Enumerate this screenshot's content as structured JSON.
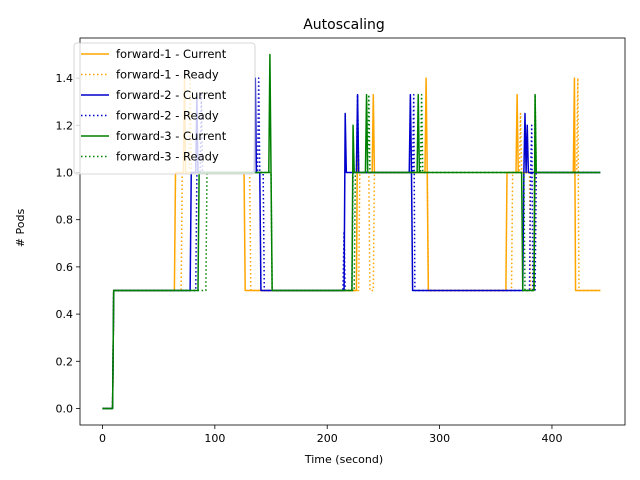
{
  "chart_data": {
    "type": "line",
    "title": "Autoscaling",
    "xlabel": "Time (second)",
    "ylabel": "# Pods",
    "xlim": [
      -20,
      465
    ],
    "ylim": [
      -0.07,
      1.57
    ],
    "xticks": [
      0,
      100,
      200,
      300,
      400
    ],
    "yticks": [
      0.0,
      0.2,
      0.4,
      0.6,
      0.8,
      1.0,
      1.2,
      1.4
    ],
    "ytick_labels": [
      "0.0",
      "0.2",
      "0.4",
      "0.6",
      "0.8",
      "1.0",
      "1.2",
      "1.4"
    ],
    "grid": false,
    "legend_position": "top-left",
    "series": [
      {
        "name": "forward-1 - Current",
        "color": "#ffa500",
        "dash": "solid",
        "points": [
          [
            0,
            0
          ],
          [
            9,
            0
          ],
          [
            10,
            0.5
          ],
          [
            64,
            0.5
          ],
          [
            65,
            1.0
          ],
          [
            72,
            1.0
          ],
          [
            73,
            1.4
          ],
          [
            74,
            1.0
          ],
          [
            126,
            1.0
          ],
          [
            127,
            0.5
          ],
          [
            215,
            0.5
          ],
          [
            216,
            0.5
          ],
          [
            226,
            0.5
          ],
          [
            227,
            1.25
          ],
          [
            228,
            1.0
          ],
          [
            240,
            1.0
          ],
          [
            241,
            1.33
          ],
          [
            242,
            1.0
          ],
          [
            287,
            1.0
          ],
          [
            288,
            1.4
          ],
          [
            289,
            1.0
          ],
          [
            290,
            0.5
          ],
          [
            359,
            0.5
          ],
          [
            360,
            1.0
          ],
          [
            368,
            1.0
          ],
          [
            369,
            1.33
          ],
          [
            370,
            1.0
          ],
          [
            419,
            1.0
          ],
          [
            420,
            1.4
          ],
          [
            421,
            0.5
          ],
          [
            443,
            0.5
          ]
        ]
      },
      {
        "name": "forward-1 - Ready",
        "color": "#ffa500",
        "dash": "dotted",
        "points": [
          [
            0,
            0
          ],
          [
            9,
            0
          ],
          [
            10,
            0.5
          ],
          [
            70,
            0.5
          ],
          [
            71,
            1.0
          ],
          [
            77,
            1.0
          ],
          [
            78,
            1.4
          ],
          [
            79,
            1.0
          ],
          [
            131,
            1.0
          ],
          [
            132,
            0.5
          ],
          [
            228,
            0.5
          ],
          [
            229,
            1.0
          ],
          [
            237,
            1.0
          ],
          [
            238,
            0.5
          ],
          [
            241,
            0.5
          ],
          [
            242,
            1.0
          ],
          [
            289,
            1.0
          ],
          [
            290,
            0.5
          ],
          [
            364,
            0.5
          ],
          [
            365,
            1.0
          ],
          [
            371,
            1.0
          ],
          [
            372,
            1.25
          ],
          [
            373,
            1.0
          ],
          [
            380,
            1.0
          ],
          [
            381,
            0.5
          ],
          [
            384,
            0.5
          ],
          [
            385,
            1.0
          ],
          [
            422,
            1.0
          ],
          [
            423,
            1.4
          ],
          [
            424,
            0.5
          ],
          [
            443,
            0.5
          ]
        ]
      },
      {
        "name": "forward-2 - Current",
        "color": "#0000cc",
        "dash": "solid",
        "points": [
          [
            0,
            0
          ],
          [
            9,
            0
          ],
          [
            10,
            0.5
          ],
          [
            78,
            0.5
          ],
          [
            79,
            1.0
          ],
          [
            83,
            1.0
          ],
          [
            84,
            1.33
          ],
          [
            85,
            1.0
          ],
          [
            135,
            1.0
          ],
          [
            136,
            1.4
          ],
          [
            137,
            1.0
          ],
          [
            140,
            1.0
          ],
          [
            141,
            0.5
          ],
          [
            215,
            0.5
          ],
          [
            216,
            1.25
          ],
          [
            217,
            1.0
          ],
          [
            226,
            1.0
          ],
          [
            227,
            1.33
          ],
          [
            228,
            1.0
          ],
          [
            273,
            1.0
          ],
          [
            274,
            1.33
          ],
          [
            275,
            1.0
          ],
          [
            276,
            0.5
          ],
          [
            374,
            0.5
          ],
          [
            375,
            1.0
          ],
          [
            376,
            1.25
          ],
          [
            377,
            1.0
          ],
          [
            378,
            1.2
          ],
          [
            379,
            1.0
          ],
          [
            443,
            1.0
          ]
        ]
      },
      {
        "name": "forward-2 - Ready",
        "color": "#0000cc",
        "dash": "dotted",
        "points": [
          [
            0,
            0
          ],
          [
            9,
            0
          ],
          [
            10,
            0.5
          ],
          [
            83,
            0.5
          ],
          [
            84,
            1.0
          ],
          [
            87,
            1.0
          ],
          [
            88,
            1.33
          ],
          [
            89,
            1.0
          ],
          [
            138,
            1.0
          ],
          [
            139,
            1.4
          ],
          [
            140,
            1.0
          ],
          [
            143,
            1.0
          ],
          [
            144,
            0.5
          ],
          [
            214,
            0.5
          ],
          [
            215,
            0.75
          ],
          [
            216,
            0.5
          ],
          [
            222,
            0.5
          ],
          [
            223,
            1.0
          ],
          [
            226,
            1.0
          ],
          [
            227,
            1.33
          ],
          [
            228,
            1.0
          ],
          [
            276,
            1.0
          ],
          [
            277,
            1.33
          ],
          [
            278,
            0.5
          ],
          [
            380,
            0.5
          ],
          [
            381,
            1.0
          ],
          [
            382,
            1.2
          ],
          [
            383,
            0.5
          ],
          [
            385,
            0.5
          ],
          [
            386,
            1.0
          ],
          [
            443,
            1.0
          ]
        ]
      },
      {
        "name": "forward-3 - Current",
        "color": "#008000",
        "dash": "solid",
        "points": [
          [
            0,
            0
          ],
          [
            9,
            0
          ],
          [
            10,
            0.5
          ],
          [
            85,
            0.5
          ],
          [
            86,
            1.0
          ],
          [
            148,
            1.0
          ],
          [
            149,
            1.5
          ],
          [
            150,
            1.0
          ],
          [
            151,
            0.5
          ],
          [
            222,
            0.5
          ],
          [
            223,
            1.2
          ],
          [
            224,
            1.0
          ],
          [
            234,
            1.0
          ],
          [
            235,
            1.33
          ],
          [
            236,
            1.0
          ],
          [
            280,
            1.0
          ],
          [
            281,
            1.33
          ],
          [
            282,
            1.0
          ],
          [
            373,
            1.0
          ],
          [
            374,
            0.5
          ],
          [
            384,
            0.5
          ],
          [
            385,
            1.33
          ],
          [
            386,
            1.0
          ],
          [
            443,
            1.0
          ]
        ]
      },
      {
        "name": "forward-3 - Ready",
        "color": "#008000",
        "dash": "dotted",
        "points": [
          [
            0,
            0
          ],
          [
            9,
            0
          ],
          [
            10,
            0.5
          ],
          [
            92,
            0.5
          ],
          [
            93,
            1.0
          ],
          [
            150,
            1.0
          ],
          [
            151,
            0.5
          ],
          [
            224,
            0.5
          ],
          [
            225,
            1.0
          ],
          [
            236,
            1.0
          ],
          [
            237,
            1.33
          ],
          [
            238,
            1.0
          ],
          [
            283,
            1.0
          ],
          [
            284,
            1.33
          ],
          [
            285,
            1.0
          ],
          [
            375,
            1.0
          ],
          [
            376,
            0.5
          ],
          [
            384,
            0.5
          ],
          [
            385,
            1.33
          ],
          [
            386,
            1.0
          ],
          [
            443,
            1.0
          ]
        ]
      }
    ]
  }
}
